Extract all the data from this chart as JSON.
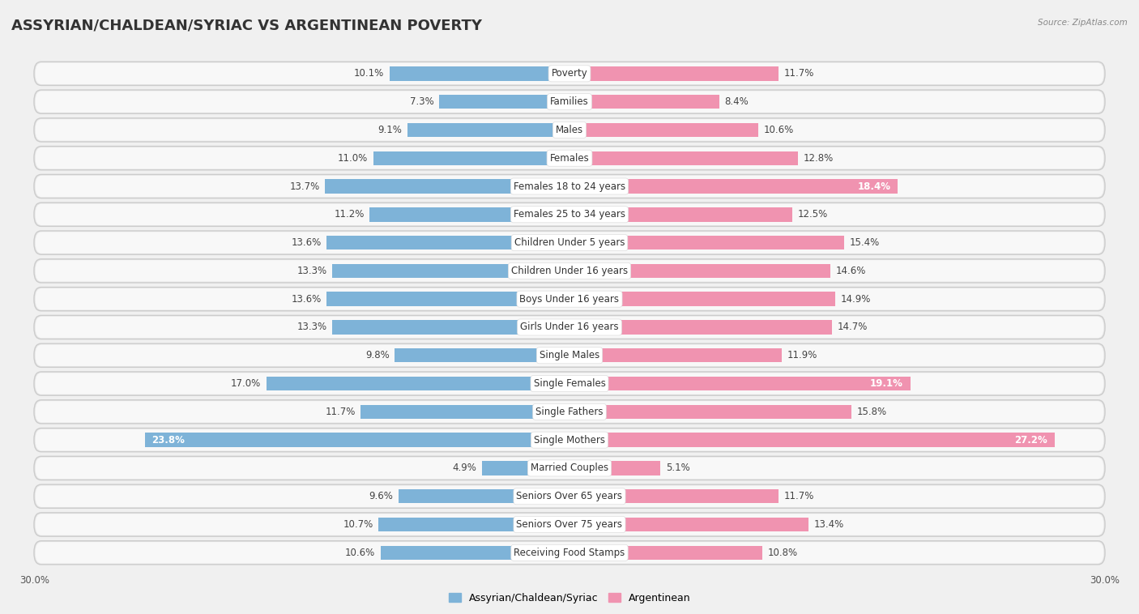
{
  "title": "ASSYRIAN/CHALDEAN/SYRIAC VS ARGENTINEAN POVERTY",
  "source": "Source: ZipAtlas.com",
  "categories": [
    "Poverty",
    "Families",
    "Males",
    "Females",
    "Females 18 to 24 years",
    "Females 25 to 34 years",
    "Children Under 5 years",
    "Children Under 16 years",
    "Boys Under 16 years",
    "Girls Under 16 years",
    "Single Males",
    "Single Females",
    "Single Fathers",
    "Single Mothers",
    "Married Couples",
    "Seniors Over 65 years",
    "Seniors Over 75 years",
    "Receiving Food Stamps"
  ],
  "assyrian_values": [
    10.1,
    7.3,
    9.1,
    11.0,
    13.7,
    11.2,
    13.6,
    13.3,
    13.6,
    13.3,
    9.8,
    17.0,
    11.7,
    23.8,
    4.9,
    9.6,
    10.7,
    10.6
  ],
  "argentinean_values": [
    11.7,
    8.4,
    10.6,
    12.8,
    18.4,
    12.5,
    15.4,
    14.6,
    14.9,
    14.7,
    11.9,
    19.1,
    15.8,
    27.2,
    5.1,
    11.7,
    13.4,
    10.8
  ],
  "assyrian_color": "#7eb3d8",
  "argentinean_color": "#f093b0",
  "assyrian_label": "Assyrian/Chaldean/Syriac",
  "argentinean_label": "Argentinean",
  "xlim": 30,
  "bar_height": 0.5,
  "background_color": "#f0f0f0",
  "row_bg_color": "#e8e8e8",
  "row_inner_color": "#f8f8f8",
  "title_fontsize": 13,
  "label_fontsize": 8.5,
  "value_fontsize": 8.5,
  "legend_fontsize": 9,
  "assyrian_inside_threshold": 20.0,
  "argentinean_inside_threshold": 17.0
}
